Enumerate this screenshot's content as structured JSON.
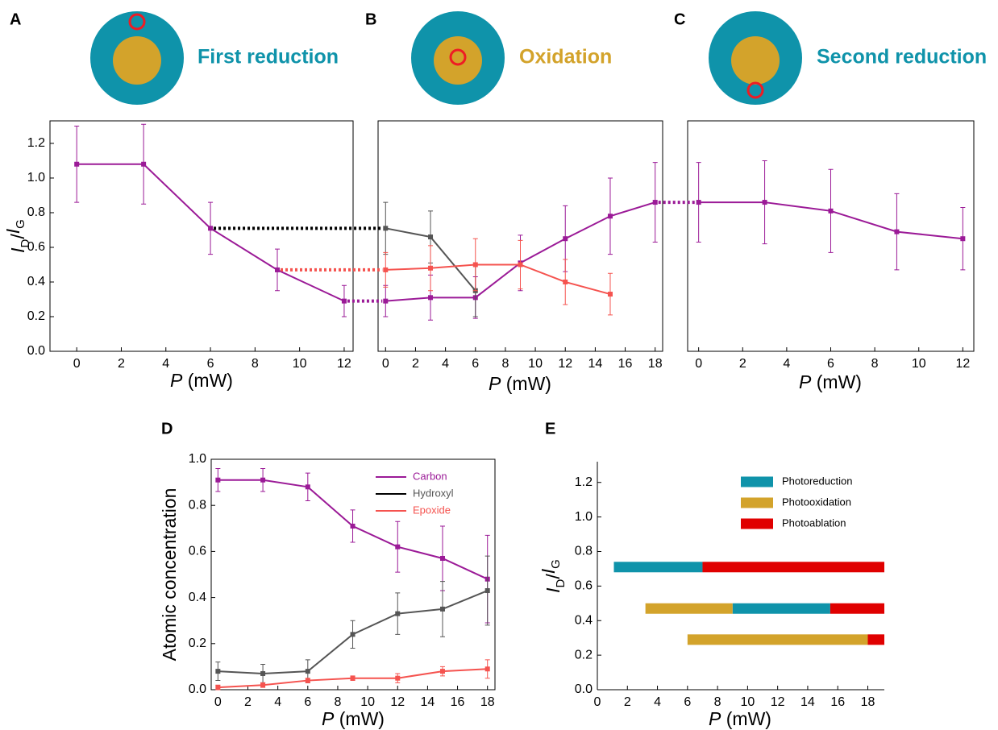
{
  "chart_data": [
    {
      "type": "line",
      "panel": "A",
      "header": "First reduction",
      "header_color": "#0f93aa",
      "x": [
        0,
        3,
        6,
        9,
        12
      ],
      "series": [
        {
          "color": "#9b1a97",
          "values": [
            1.08,
            1.08,
            0.71,
            0.47,
            0.29
          ],
          "errors": [
            0.22,
            0.23,
            0.15,
            0.12,
            0.09
          ]
        }
      ],
      "xlim": [
        -1.2,
        12.4
      ],
      "ylim": [
        0,
        1.33
      ],
      "xticks": [
        0,
        2,
        4,
        6,
        8,
        10,
        12
      ],
      "yticks": [
        {
          "value": 0,
          "label": "0.0"
        },
        0.2,
        0.4,
        0.6,
        0.8,
        {
          "value": 1,
          "label": "1.0"
        },
        1.2
      ],
      "xlabel": [
        "P",
        " (mW)"
      ],
      "ylabel": [
        "I",
        "D",
        "/",
        "I",
        "G"
      ]
    },
    {
      "type": "line",
      "panel": "B",
      "header": "Oxidation",
      "header_color": "#d3a32b",
      "x": [
        0,
        3,
        6,
        9,
        12,
        15,
        18
      ],
      "series": [
        {
          "color": "#9b1a97",
          "values": [
            0.29,
            0.31,
            0.31,
            0.51,
            0.65,
            0.78,
            0.86
          ],
          "errors": [
            0.09,
            0.13,
            0.12,
            0.16,
            0.19,
            0.22,
            0.23
          ]
        },
        {
          "color": "#555555",
          "values": [
            0.71,
            0.66,
            0.35,
            null,
            null,
            null,
            null
          ],
          "errors": [
            0.15,
            0.15,
            0.15,
            null,
            null,
            null,
            null
          ]
        },
        {
          "color": "#f5534f",
          "values": [
            0.47,
            0.48,
            0.5,
            0.5,
            0.4,
            0.33,
            null
          ],
          "errors": [
            0.1,
            0.13,
            0.15,
            0.14,
            0.13,
            0.12,
            null
          ]
        }
      ],
      "xlim": [
        -0.5,
        18.5
      ],
      "ylim": [
        0,
        1.33
      ],
      "xticks": [
        0,
        2,
        4,
        6,
        8,
        10,
        12,
        14,
        16,
        18
      ],
      "xlabel": [
        "P",
        " (mW)"
      ]
    },
    {
      "type": "line",
      "panel": "C",
      "header": "Second reduction",
      "header_color": "#0f93aa",
      "x": [
        0,
        3,
        6,
        9,
        12
      ],
      "series": [
        {
          "color": "#9b1a97",
          "values": [
            0.86,
            0.86,
            0.81,
            0.69,
            0.65
          ],
          "errors": [
            0.23,
            0.24,
            0.24,
            0.22,
            0.18
          ]
        }
      ],
      "xlim": [
        -0.5,
        12.5
      ],
      "ylim": [
        0,
        1.33
      ],
      "xticks": [
        0,
        2,
        4,
        6,
        8,
        10,
        12
      ],
      "xlabel": [
        "P",
        " (mW)"
      ]
    },
    {
      "type": "line",
      "panel": "D",
      "x": [
        0,
        3,
        6,
        9,
        12,
        15,
        18
      ],
      "series": [
        {
          "name": "Carbon",
          "color": "#9b1a97",
          "values": [
            0.91,
            0.91,
            0.88,
            0.71,
            0.62,
            0.57,
            0.48
          ],
          "errors": [
            0.05,
            0.05,
            0.06,
            0.07,
            0.11,
            0.14,
            0.19
          ]
        },
        {
          "name": "Hydroxyl",
          "color": "#555555",
          "values": [
            0.08,
            0.07,
            0.08,
            0.24,
            0.33,
            0.35,
            0.43
          ],
          "errors": [
            0.04,
            0.04,
            0.05,
            0.06,
            0.09,
            0.12,
            0.15
          ]
        },
        {
          "name": "Epoxide",
          "color": "#f5534f",
          "values": [
            0.01,
            0.02,
            0.04,
            0.05,
            0.05,
            0.08,
            0.09
          ],
          "errors": [
            0.01,
            0.01,
            0.01,
            0.01,
            0.02,
            0.02,
            0.04
          ]
        }
      ],
      "xlim": [
        -0.45,
        18.5
      ],
      "ylim": [
        0,
        1.0
      ],
      "xticks": [
        0,
        2,
        4,
        6,
        8,
        10,
        12,
        14,
        16,
        18
      ],
      "yticks": [
        {
          "value": 0,
          "label": "0.0"
        },
        0.2,
        0.4,
        0.6,
        0.8,
        {
          "value": 1,
          "label": "1.0"
        }
      ],
      "xlabel": [
        "P",
        " (mW)"
      ],
      "ylabel": [
        "Atomic concentration"
      ],
      "legend": "upper right"
    },
    {
      "type": "range-bar",
      "panel": "E",
      "series": [
        {
          "name": "Photoreduction",
          "color": "#0f93aa",
          "bars": [
            {
              "y": 0.71,
              "start": 1.1,
              "end": 7.0
            },
            {
              "y": 0.47,
              "start": 9.0,
              "end": 15.5
            }
          ]
        },
        {
          "name": "Photooxidation",
          "color": "#d3a32b",
          "bars": [
            {
              "y": 0.47,
              "start": 3.2,
              "end": 9.0
            },
            {
              "y": 0.29,
              "start": 6.0,
              "end": 18.0
            }
          ]
        },
        {
          "name": "Photoablation",
          "color": "#e00000",
          "bars": [
            {
              "y": 0.71,
              "start": 7.0,
              "end": 19.1
            },
            {
              "y": 0.47,
              "start": 15.5,
              "end": 19.1
            },
            {
              "y": 0.29,
              "start": 18.0,
              "end": 19.1
            }
          ]
        }
      ],
      "xlim": [
        0,
        19.1
      ],
      "ylim": [
        0,
        1.32
      ],
      "xticks": [
        0,
        2,
        4,
        6,
        8,
        10,
        12,
        14,
        16,
        18
      ],
      "yticks": [
        {
          "value": 0,
          "label": "0.0"
        },
        0.2,
        0.4,
        0.6,
        0.8,
        {
          "value": 1,
          "label": "1.0"
        },
        1.2
      ],
      "xlabel": [
        "P",
        " (mW)"
      ],
      "ylabel": [
        "I",
        "D",
        "/",
        "I",
        "G"
      ],
      "legend": "upper right"
    }
  ]
}
